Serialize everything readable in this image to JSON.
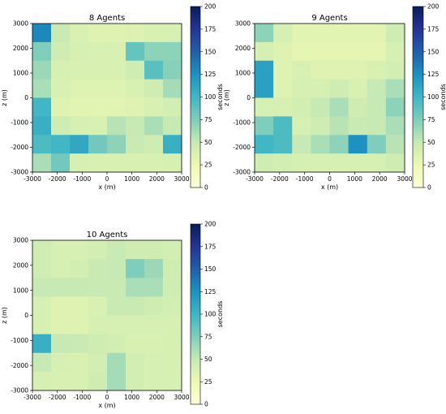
{
  "colorscale": {
    "stops": [
      "#ffffd9",
      "#edf8b1",
      "#c7e9b4",
      "#7fcdbb",
      "#41b6c4",
      "#1d91c0",
      "#225ea8",
      "#253494",
      "#081d58"
    ],
    "vmin": 0,
    "vmax": 200
  },
  "chart_data": [
    {
      "type": "heatmap",
      "title": "8 Agents",
      "xlabel": "x (m)",
      "ylabel": "z (m)",
      "colorbar_label": "seconds",
      "xlim": [
        -3000,
        3000
      ],
      "ylim": [
        -3000,
        3000
      ],
      "xticks": [
        -3000,
        -2000,
        -1000,
        0,
        1000,
        2000,
        3000
      ],
      "yticks": [
        -3000,
        -2000,
        -1000,
        0,
        1000,
        2000,
        3000
      ],
      "cbar_ticks": [
        0,
        25,
        50,
        75,
        100,
        125,
        150,
        175,
        200
      ],
      "x_edges": [
        -3000,
        -2250,
        -1500,
        -750,
        0,
        750,
        1500,
        2250,
        3000
      ],
      "z_edges": [
        -3000,
        -2250,
        -1500,
        -750,
        0,
        750,
        1500,
        2250,
        3000
      ],
      "values": [
        [
          130,
          48,
          38,
          35,
          35,
          36,
          38,
          40
        ],
        [
          75,
          45,
          40,
          38,
          38,
          85,
          70,
          70
        ],
        [
          65,
          40,
          38,
          38,
          38,
          45,
          90,
          72
        ],
        [
          60,
          38,
          35,
          35,
          35,
          38,
          45,
          62
        ],
        [
          100,
          35,
          32,
          32,
          32,
          35,
          38,
          42
        ],
        [
          105,
          45,
          40,
          38,
          55,
          50,
          60,
          50
        ],
        [
          95,
          100,
          110,
          80,
          70,
          48,
          45,
          105
        ],
        [
          60,
          80,
          40,
          38,
          38,
          38,
          38,
          40
        ]
      ]
    },
    {
      "type": "heatmap",
      "title": "9 Agents",
      "xlabel": "x (m)",
      "ylabel": "z (m)",
      "colorbar_label": "seconds",
      "xlim": [
        -3000,
        3000
      ],
      "ylim": [
        -3000,
        3000
      ],
      "xticks": [
        -3000,
        -2000,
        -1000,
        0,
        1000,
        2000,
        3000
      ],
      "yticks": [
        -3000,
        -2000,
        -1000,
        0,
        1000,
        2000,
        3000
      ],
      "cbar_ticks": [
        0,
        25,
        50,
        75,
        100,
        125,
        150,
        175,
        200
      ],
      "x_edges": [
        -3000,
        -2250,
        -1500,
        -750,
        0,
        750,
        1500,
        2250,
        3000
      ],
      "z_edges": [
        -3000,
        -2250,
        -1500,
        -750,
        0,
        750,
        1500,
        2250,
        3000
      ],
      "values": [
        [
          70,
          40,
          32,
          32,
          32,
          32,
          32,
          45
        ],
        [
          40,
          35,
          30,
          30,
          30,
          30,
          30,
          40
        ],
        [
          115,
          35,
          38,
          35,
          35,
          35,
          38,
          42
        ],
        [
          115,
          35,
          40,
          40,
          45,
          38,
          50,
          60
        ],
        [
          40,
          40,
          42,
          50,
          60,
          45,
          50,
          70
        ],
        [
          75,
          95,
          40,
          45,
          55,
          48,
          50,
          60
        ],
        [
          100,
          95,
          50,
          60,
          70,
          125,
          75,
          55
        ],
        [
          45,
          42,
          40,
          40,
          40,
          40,
          40,
          45
        ]
      ]
    },
    {
      "type": "heatmap",
      "title": "10 Agents",
      "xlabel": "x (m)",
      "ylabel": "z (m)",
      "colorbar_label": "seconds",
      "xlim": [
        -3000,
        3000
      ],
      "ylim": [
        -3000,
        3000
      ],
      "xticks": [
        -3000,
        -2000,
        -1000,
        0,
        1000,
        2000,
        3000
      ],
      "yticks": [
        -3000,
        -2000,
        -1000,
        0,
        1000,
        2000,
        3000
      ],
      "cbar_ticks": [
        0,
        25,
        50,
        75,
        100,
        125,
        150,
        175,
        200
      ],
      "x_edges": [
        -3000,
        -2250,
        -1500,
        -750,
        0,
        750,
        1500,
        2250,
        3000
      ],
      "z_edges": [
        -3000,
        -2250,
        -1500,
        -750,
        0,
        750,
        1500,
        2250,
        3000
      ],
      "values": [
        [
          45,
          40,
          40,
          42,
          48,
          45,
          45,
          42
        ],
        [
          45,
          40,
          42,
          48,
          50,
          75,
          65,
          45
        ],
        [
          50,
          50,
          50,
          48,
          48,
          60,
          60,
          45
        ],
        [
          40,
          35,
          35,
          38,
          48,
          48,
          45,
          42
        ],
        [
          40,
          35,
          35,
          40,
          40,
          40,
          40,
          40
        ],
        [
          105,
          50,
          48,
          45,
          42,
          38,
          38,
          40
        ],
        [
          50,
          40,
          38,
          42,
          62,
          42,
          40,
          40
        ],
        [
          40,
          38,
          38,
          45,
          62,
          42,
          40,
          40
        ]
      ]
    }
  ]
}
